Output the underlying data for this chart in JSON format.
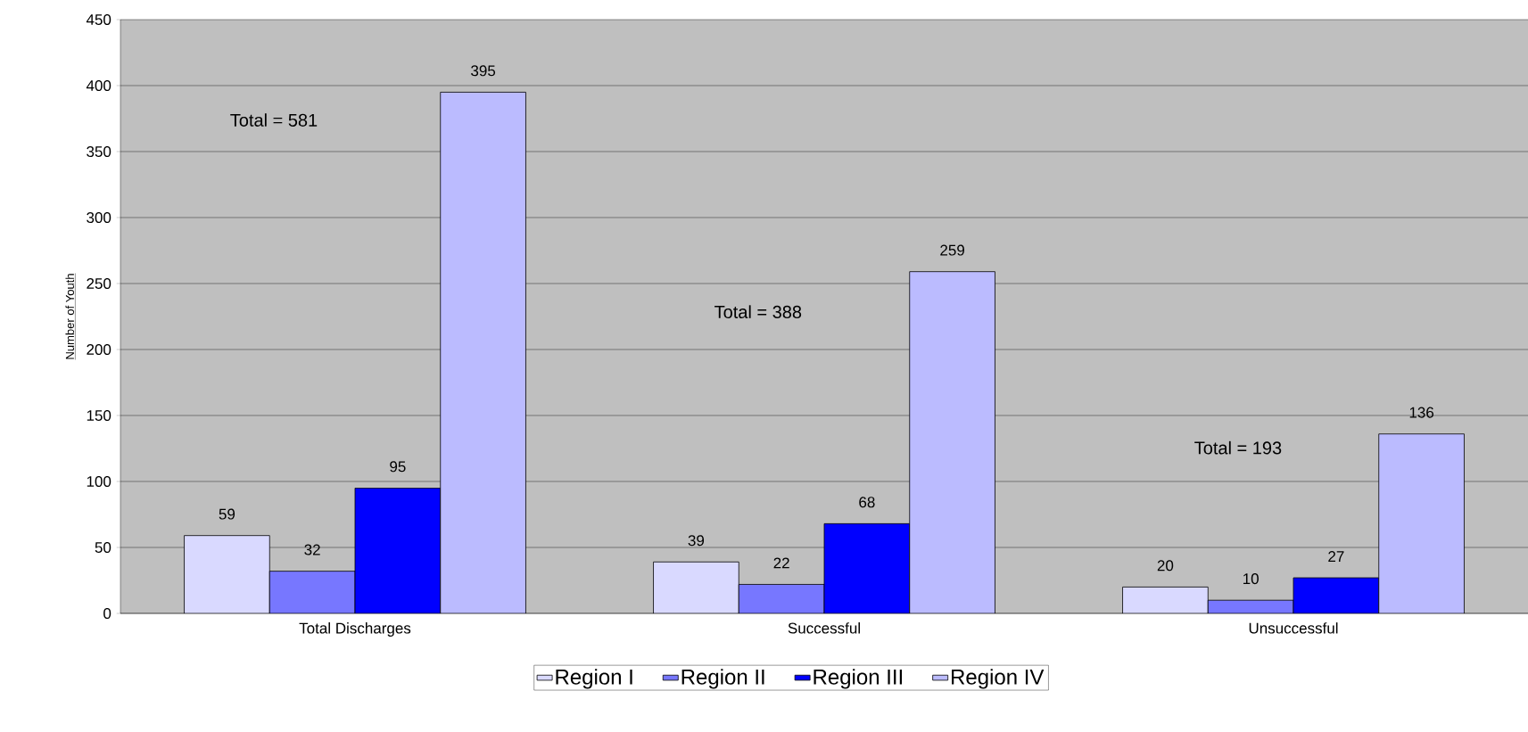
{
  "chart_data": {
    "type": "bar",
    "ylabel": "Number of Youth",
    "categories": [
      "Total Discharges",
      "Successful",
      "Unsuccessful"
    ],
    "series": [
      {
        "name": "Region I",
        "color": "#d9d9ff",
        "values": [
          59,
          39,
          20
        ]
      },
      {
        "name": "Region II",
        "color": "#7777ff",
        "values": [
          32,
          22,
          10
        ]
      },
      {
        "name": "Region III",
        "color": "#0000ff",
        "values": [
          95,
          68,
          27
        ]
      },
      {
        "name": "Region IV",
        "color": "#bbbbff",
        "values": [
          395,
          259,
          136
        ]
      }
    ],
    "ylim": [
      0,
      450
    ],
    "yticks": [
      0,
      50,
      100,
      150,
      200,
      250,
      300,
      350,
      400,
      450
    ],
    "grid": "y",
    "legend": "bottom",
    "data_labels": true,
    "annotations": [
      "Total = 581",
      "Total = 388",
      "Total = 193"
    ]
  }
}
